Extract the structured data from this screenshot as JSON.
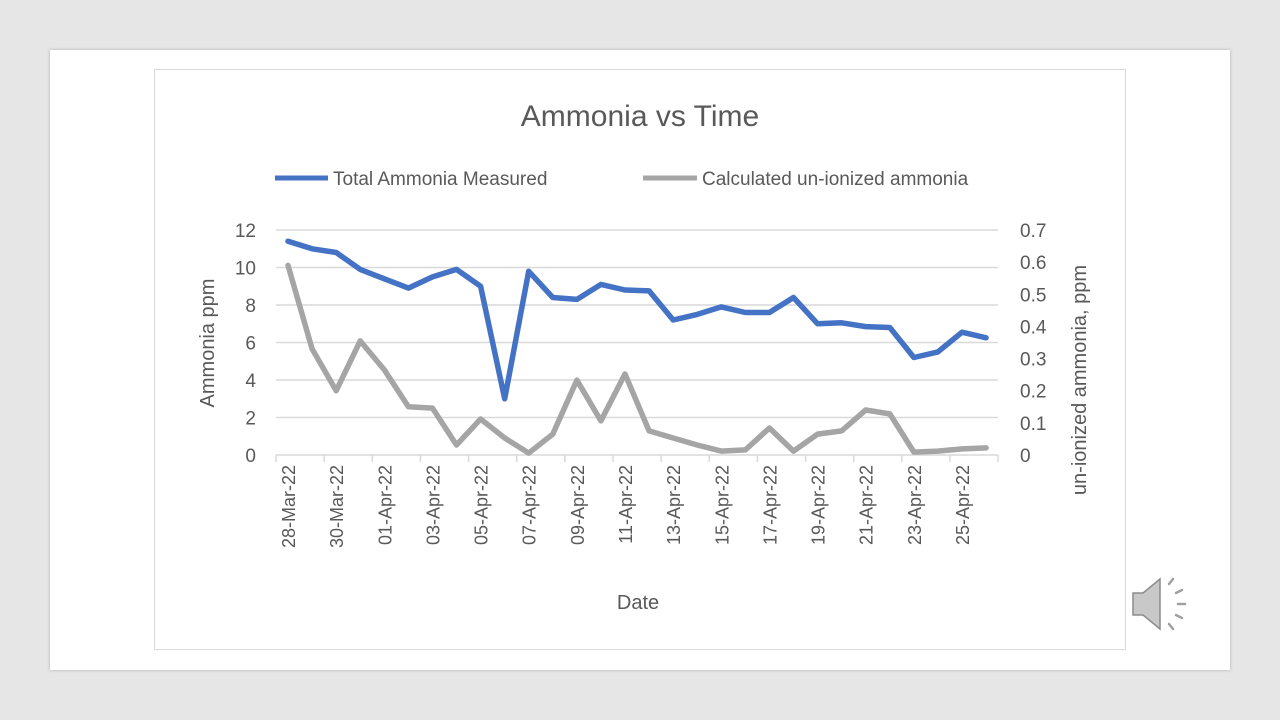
{
  "chart_data": {
    "type": "line",
    "title": "Ammonia vs Time",
    "xlabel": "Date",
    "ylabel": "Ammonia ppm",
    "y2label": "un-ionized ammonia, ppm",
    "ylim": [
      0,
      12
    ],
    "y2lim": [
      0,
      0.7
    ],
    "yticks": [
      "0",
      "2",
      "4",
      "6",
      "8",
      "10",
      "12"
    ],
    "y2ticks": [
      "0",
      "0.1",
      "0.2",
      "0.3",
      "0.4",
      "0.5",
      "0.6",
      "0.7"
    ],
    "grid": true,
    "legend": "top",
    "xtick_labels": [
      "28-Mar-22",
      "30-Mar-22",
      "01-Apr-22",
      "03-Apr-22",
      "05-Apr-22",
      "07-Apr-22",
      "09-Apr-22",
      "11-Apr-22",
      "13-Apr-22",
      "15-Apr-22",
      "17-Apr-22",
      "19-Apr-22",
      "21-Apr-22",
      "23-Apr-22",
      "25-Apr-22"
    ],
    "x": [
      "28-Mar-22",
      "29-Mar-22",
      "30-Mar-22",
      "31-Mar-22",
      "01-Apr-22",
      "02-Apr-22",
      "03-Apr-22",
      "04-Apr-22",
      "05-Apr-22",
      "06-Apr-22",
      "07-Apr-22",
      "08-Apr-22",
      "09-Apr-22",
      "10-Apr-22",
      "11-Apr-22",
      "12-Apr-22",
      "13-Apr-22",
      "14-Apr-22",
      "15-Apr-22",
      "16-Apr-22",
      "17-Apr-22",
      "18-Apr-22",
      "19-Apr-22",
      "20-Apr-22",
      "21-Apr-22",
      "22-Apr-22",
      "23-Apr-22",
      "24-Apr-22",
      "25-Apr-22",
      "26-Apr-22"
    ],
    "series": [
      {
        "name": "Total Ammonia Measured",
        "axis": "left",
        "color": "#4472c4",
        "values": [
          11.4,
          11.0,
          10.8,
          9.9,
          9.4,
          8.9,
          9.5,
          9.9,
          9.0,
          3.0,
          9.8,
          8.4,
          8.3,
          9.1,
          8.8,
          8.75,
          7.2,
          7.5,
          7.9,
          7.6,
          7.6,
          8.4,
          7.0,
          7.05,
          6.85,
          6.8,
          5.2,
          5.5,
          6.55,
          6.25
        ]
      },
      {
        "name": "Calculated un-ionized ammonia",
        "axis": "right",
        "color": "#a5a5a5",
        "values": [
          0.59,
          0.33,
          0.2,
          0.355,
          0.265,
          0.15,
          0.146,
          0.031,
          0.112,
          0.053,
          0.006,
          0.065,
          0.233,
          0.106,
          0.252,
          0.075,
          0.053,
          0.031,
          0.012,
          0.016,
          0.084,
          0.012,
          0.065,
          0.075,
          0.14,
          0.128,
          0.009,
          0.012,
          0.019,
          0.022
        ]
      }
    ]
  },
  "speaker_icon": "speaker-icon"
}
